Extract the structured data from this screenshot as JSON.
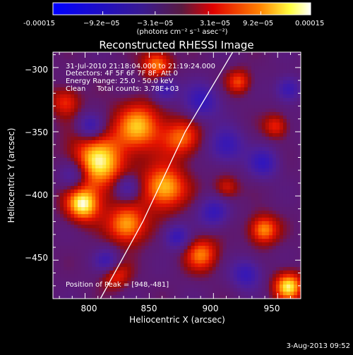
{
  "colorbar": {
    "ticks": [
      "-0.00015",
      "−9.2e−05",
      "−3.1e−05",
      "3.1e−05",
      "9.2e−05",
      "0.00015"
    ],
    "tick_values": [
      -0.00015,
      -9.2e-05,
      -3.1e-05,
      3.1e-05,
      9.2e-05,
      0.00015
    ],
    "range": [
      -0.00015,
      0.00015
    ],
    "unit_label": "(photons cm⁻² s⁻¹ asec⁻²)"
  },
  "chart_data": {
    "type": "heatmap",
    "title": "Reconstructed RHESSI Image",
    "xlabel": "Heliocentric X (arcsec)",
    "ylabel": "Heliocentric Y (arcsec)",
    "xlim": [
      775,
      968
    ],
    "ylim": [
      -480,
      -288
    ],
    "xticks": [
      800,
      850,
      900,
      950
    ],
    "yticks": [
      -300,
      -350,
      -400,
      -450
    ],
    "xtick_labels": [
      "800",
      "850",
      "900",
      "950"
    ],
    "ytick_labels": [
      "−300",
      "−350",
      "−400",
      "−450"
    ],
    "colormap": [
      "#0000ff",
      "#5a2aa0",
      "#6a2a7a",
      "#ff0000",
      "#ff8000",
      "#ffff00",
      "#ffffff"
    ],
    "annotations": [
      "31-Jul-2010 21:18:04.000 to 21:19:24.000",
      "Detectors: 4F 5F 6F 7F 8F, Att 0",
      "Energy Range: 25.0 - 50.0 keV",
      "Clean     Total counts: 3.78E+03"
    ],
    "peak_label": "Position of Peak = [948,-481]",
    "limb_curve": [
      [
        812,
        -480
      ],
      [
        845,
        -420
      ],
      [
        878,
        -350
      ],
      [
        915,
        -288
      ]
    ]
  },
  "footer": {
    "date": "3-Aug-2013 09:52"
  }
}
